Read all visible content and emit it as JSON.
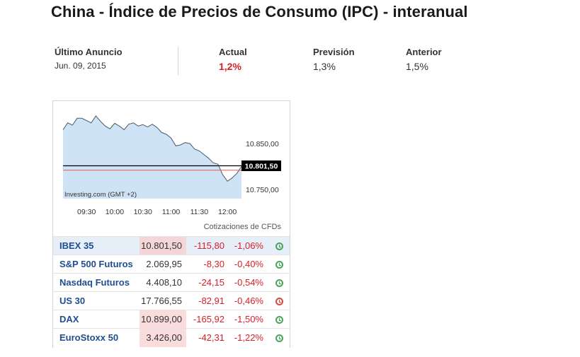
{
  "title": "China - Índice de Precios de Consumo (IPC) - interanual",
  "release": {
    "last_label": "Último Anuncio",
    "last_date": "Jun. 09, 2015",
    "actual_label": "Actual",
    "actual_value": "1,2%",
    "forecast_label": "Previsión",
    "forecast_value": "1,3%",
    "previous_label": "Anterior",
    "previous_value": "1,5%"
  },
  "chart": {
    "watermark": "Investing.com (GMT +2)",
    "footer": "Cotizaciones de CFDs",
    "current_price_label": "10.801,50",
    "current_price": 10801.5,
    "reference_price": 10792,
    "y_ticks": [
      {
        "value": 10850,
        "label": "10.850,00"
      },
      {
        "value": 10750,
        "label": "10.750,00"
      }
    ],
    "x_ticks": [
      "09:30",
      "10:00",
      "10:30",
      "11:00",
      "11:30",
      "12:00"
    ],
    "colors": {
      "fill": "#cfe3f7",
      "line": "#4d5b6b",
      "price_line": "#000000",
      "reference_line": "#e05a5a"
    }
  },
  "chart_data": {
    "type": "area",
    "title": "",
    "xlabel": "",
    "ylabel": "",
    "x": [
      "09:05",
      "09:10",
      "09:15",
      "09:20",
      "09:25",
      "09:30",
      "09:35",
      "09:40",
      "09:45",
      "09:50",
      "09:55",
      "10:00",
      "10:05",
      "10:10",
      "10:15",
      "10:20",
      "10:25",
      "10:30",
      "10:35",
      "10:40",
      "10:45",
      "10:50",
      "10:55",
      "11:00",
      "11:05",
      "11:10",
      "11:15",
      "11:20",
      "11:25",
      "11:30",
      "11:35",
      "11:40",
      "11:45",
      "11:50",
      "11:55",
      "12:00",
      "12:05",
      "12:10",
      "12:15"
    ],
    "series": [
      {
        "values": [
          10880,
          10895,
          10890,
          10905,
          10905,
          10900,
          10895,
          10910,
          10898,
          10888,
          10882,
          10894,
          10888,
          10880,
          10892,
          10895,
          10888,
          10891,
          10886,
          10892,
          10885,
          10874,
          10870,
          10862,
          10845,
          10847,
          10852,
          10850,
          10838,
          10834,
          10826,
          10818,
          10808,
          10805,
          10782,
          10768,
          10775,
          10785,
          10800
        ]
      }
    ],
    "ylim": [
      10730,
      10930
    ],
    "grid": false
  },
  "quotes": [
    {
      "name": "IBEX 35",
      "last": "10.801,50",
      "change": "-115,80",
      "pct": "-1,06%",
      "status": "open",
      "highlight": true,
      "selected": true
    },
    {
      "name": "S&P 500 Futuros",
      "last": "2.069,95",
      "change": "-8,30",
      "pct": "-0,40%",
      "status": "open",
      "highlight": false,
      "selected": false
    },
    {
      "name": "Nasdaq Futuros",
      "last": "4.408,10",
      "change": "-24,15",
      "pct": "-0,54%",
      "status": "open",
      "highlight": false,
      "selected": false
    },
    {
      "name": "US 30",
      "last": "17.766,55",
      "change": "-82,91",
      "pct": "-0,46%",
      "status": "closed",
      "highlight": false,
      "selected": false
    },
    {
      "name": "DAX",
      "last": "10.899,00",
      "change": "-165,92",
      "pct": "-1,50%",
      "status": "open",
      "highlight": true,
      "selected": false
    },
    {
      "name": "EuroStoxx 50",
      "last": "3.426,00",
      "change": "-42,31",
      "pct": "-1,22%",
      "status": "open",
      "highlight": true,
      "selected": false
    }
  ]
}
